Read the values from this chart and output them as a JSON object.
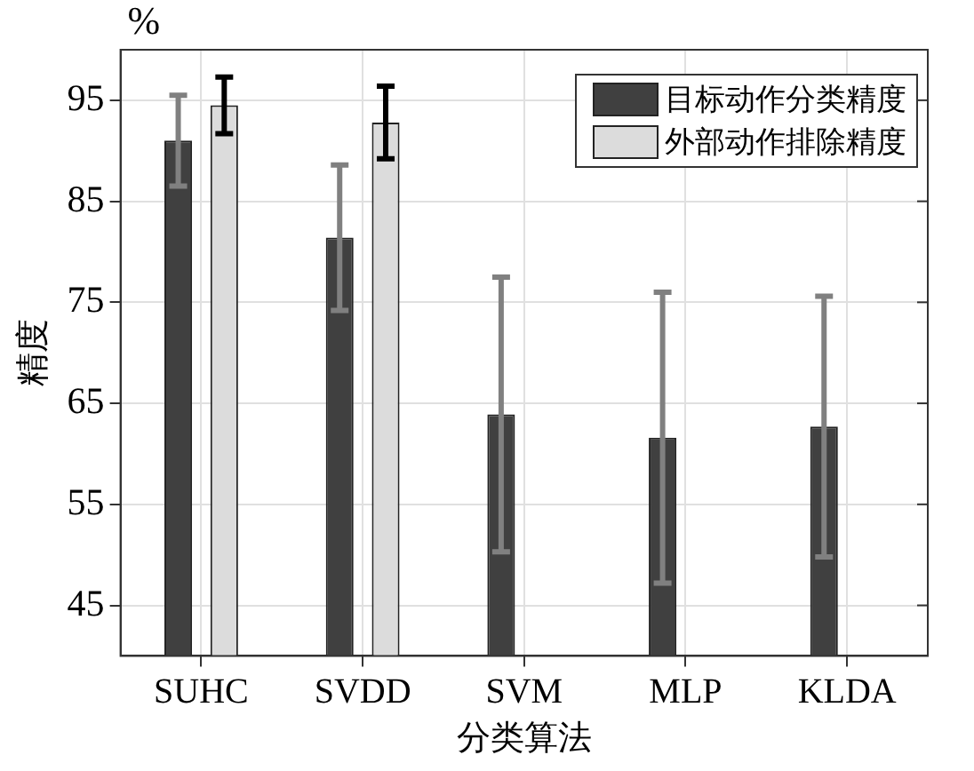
{
  "chart_data": {
    "type": "bar",
    "categories": [
      "SUHC",
      "SVDD",
      "SVM",
      "MLP",
      "KLDA"
    ],
    "series": [
      {
        "name": "目标动作分类精度",
        "color": "#404040",
        "values": [
          91.0,
          81.4,
          63.9,
          61.6,
          62.7
        ],
        "errors": [
          4.5,
          7.2,
          13.6,
          14.4,
          12.9
        ]
      },
      {
        "name": "外部动作排除精度",
        "color": "#dcdcdc",
        "values": [
          94.5,
          92.8,
          null,
          null,
          null
        ],
        "errors": [
          2.8,
          3.6,
          null,
          null,
          null
        ]
      }
    ],
    "xlabel": "分类算法",
    "ylabel": "精度",
    "annotations": [
      "%"
    ],
    "ylim": [
      40,
      100
    ],
    "yticks": [
      45,
      55,
      65,
      75,
      85,
      95
    ],
    "grid": true,
    "legend": "top right"
  }
}
